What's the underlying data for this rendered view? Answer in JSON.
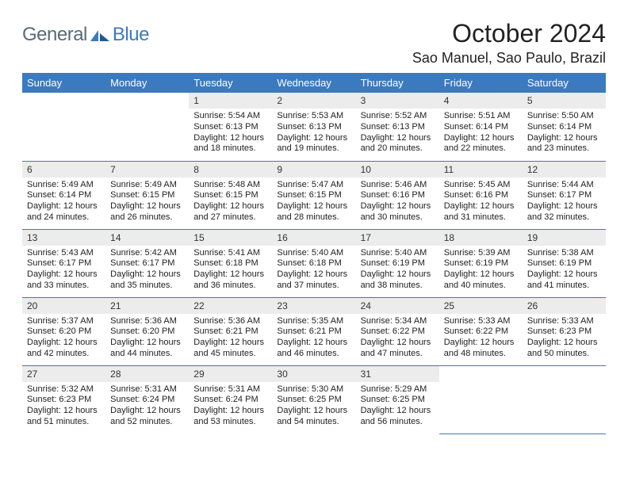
{
  "brand": {
    "word1": "General",
    "word2": "Blue"
  },
  "title": "October 2024",
  "location": "Sao Manuel, Sao Paulo, Brazil",
  "colors": {
    "brand_blue": "#3b7abf",
    "brand_gray": "#5a6a78",
    "header_bg": "#3b7abf",
    "daynum_bg": "#ececec",
    "rule": "#3b7abf",
    "text": "#222222",
    "page_bg": "#ffffff"
  },
  "typography": {
    "title_size_pt": 24,
    "location_size_pt": 13,
    "dayheader_size_pt": 10,
    "daynum_size_pt": 9,
    "body_size_pt": 8
  },
  "day_headers": [
    "Sunday",
    "Monday",
    "Tuesday",
    "Wednesday",
    "Thursday",
    "Friday",
    "Saturday"
  ],
  "weeks": [
    [
      {
        "blank": true
      },
      {
        "blank": true
      },
      {
        "n": "1",
        "sunrise": "5:54 AM",
        "sunset": "6:13 PM",
        "daylight": "12 hours and 18 minutes."
      },
      {
        "n": "2",
        "sunrise": "5:53 AM",
        "sunset": "6:13 PM",
        "daylight": "12 hours and 19 minutes."
      },
      {
        "n": "3",
        "sunrise": "5:52 AM",
        "sunset": "6:13 PM",
        "daylight": "12 hours and 20 minutes."
      },
      {
        "n": "4",
        "sunrise": "5:51 AM",
        "sunset": "6:14 PM",
        "daylight": "12 hours and 22 minutes."
      },
      {
        "n": "5",
        "sunrise": "5:50 AM",
        "sunset": "6:14 PM",
        "daylight": "12 hours and 23 minutes."
      }
    ],
    [
      {
        "n": "6",
        "sunrise": "5:49 AM",
        "sunset": "6:14 PM",
        "daylight": "12 hours and 24 minutes."
      },
      {
        "n": "7",
        "sunrise": "5:49 AM",
        "sunset": "6:15 PM",
        "daylight": "12 hours and 26 minutes."
      },
      {
        "n": "8",
        "sunrise": "5:48 AM",
        "sunset": "6:15 PM",
        "daylight": "12 hours and 27 minutes."
      },
      {
        "n": "9",
        "sunrise": "5:47 AM",
        "sunset": "6:15 PM",
        "daylight": "12 hours and 28 minutes."
      },
      {
        "n": "10",
        "sunrise": "5:46 AM",
        "sunset": "6:16 PM",
        "daylight": "12 hours and 30 minutes."
      },
      {
        "n": "11",
        "sunrise": "5:45 AM",
        "sunset": "6:16 PM",
        "daylight": "12 hours and 31 minutes."
      },
      {
        "n": "12",
        "sunrise": "5:44 AM",
        "sunset": "6:17 PM",
        "daylight": "12 hours and 32 minutes."
      }
    ],
    [
      {
        "n": "13",
        "sunrise": "5:43 AM",
        "sunset": "6:17 PM",
        "daylight": "12 hours and 33 minutes."
      },
      {
        "n": "14",
        "sunrise": "5:42 AM",
        "sunset": "6:17 PM",
        "daylight": "12 hours and 35 minutes."
      },
      {
        "n": "15",
        "sunrise": "5:41 AM",
        "sunset": "6:18 PM",
        "daylight": "12 hours and 36 minutes."
      },
      {
        "n": "16",
        "sunrise": "5:40 AM",
        "sunset": "6:18 PM",
        "daylight": "12 hours and 37 minutes."
      },
      {
        "n": "17",
        "sunrise": "5:40 AM",
        "sunset": "6:19 PM",
        "daylight": "12 hours and 38 minutes."
      },
      {
        "n": "18",
        "sunrise": "5:39 AM",
        "sunset": "6:19 PM",
        "daylight": "12 hours and 40 minutes."
      },
      {
        "n": "19",
        "sunrise": "5:38 AM",
        "sunset": "6:19 PM",
        "daylight": "12 hours and 41 minutes."
      }
    ],
    [
      {
        "n": "20",
        "sunrise": "5:37 AM",
        "sunset": "6:20 PM",
        "daylight": "12 hours and 42 minutes."
      },
      {
        "n": "21",
        "sunrise": "5:36 AM",
        "sunset": "6:20 PM",
        "daylight": "12 hours and 44 minutes."
      },
      {
        "n": "22",
        "sunrise": "5:36 AM",
        "sunset": "6:21 PM",
        "daylight": "12 hours and 45 minutes."
      },
      {
        "n": "23",
        "sunrise": "5:35 AM",
        "sunset": "6:21 PM",
        "daylight": "12 hours and 46 minutes."
      },
      {
        "n": "24",
        "sunrise": "5:34 AM",
        "sunset": "6:22 PM",
        "daylight": "12 hours and 47 minutes."
      },
      {
        "n": "25",
        "sunrise": "5:33 AM",
        "sunset": "6:22 PM",
        "daylight": "12 hours and 48 minutes."
      },
      {
        "n": "26",
        "sunrise": "5:33 AM",
        "sunset": "6:23 PM",
        "daylight": "12 hours and 50 minutes."
      }
    ],
    [
      {
        "n": "27",
        "sunrise": "5:32 AM",
        "sunset": "6:23 PM",
        "daylight": "12 hours and 51 minutes."
      },
      {
        "n": "28",
        "sunrise": "5:31 AM",
        "sunset": "6:24 PM",
        "daylight": "12 hours and 52 minutes."
      },
      {
        "n": "29",
        "sunrise": "5:31 AM",
        "sunset": "6:24 PM",
        "daylight": "12 hours and 53 minutes."
      },
      {
        "n": "30",
        "sunrise": "5:30 AM",
        "sunset": "6:25 PM",
        "daylight": "12 hours and 54 minutes."
      },
      {
        "n": "31",
        "sunrise": "5:29 AM",
        "sunset": "6:25 PM",
        "daylight": "12 hours and 56 minutes."
      },
      {
        "blank": true
      },
      {
        "blank": true
      }
    ]
  ],
  "labels": {
    "sunrise": "Sunrise:",
    "sunset": "Sunset:",
    "daylight": "Daylight:"
  }
}
